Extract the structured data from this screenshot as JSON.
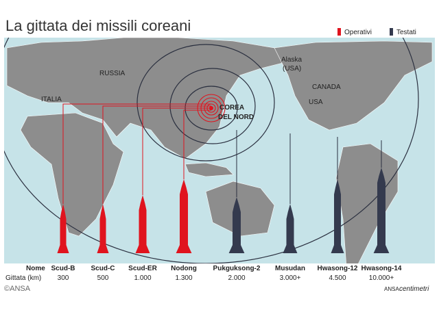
{
  "header": {
    "title": "La gittata dei missili coreani"
  },
  "legend": [
    {
      "label": "Operativi",
      "color": "#e0141e",
      "missiles": [
        {
          "name": "Scud-B",
          "range": "300"
        },
        {
          "name": "Scud-C",
          "range": "500"
        },
        {
          "name": "Scud-ER",
          "range": "1.000"
        },
        {
          "name": "Nodong",
          "range": "1.300"
        }
      ]
    },
    {
      "label": "Testati",
      "color": "#343a4e",
      "missiles": [
        {
          "name": "Pukguksong-2",
          "range": "2.000"
        },
        {
          "name": "Musudan",
          "range": "3.000+"
        },
        {
          "name": "Hwasong-12",
          "range": "4.500"
        },
        {
          "name": "Hwasong-14",
          "range": "10.000+"
        }
      ]
    }
  ],
  "map_labels": {
    "italia": "ITALIA",
    "russia": "RUSSIA",
    "alaska": [
      "Alaska",
      "(USA)"
    ],
    "canada": "CANADA",
    "usa": "USA",
    "korea": [
      "COREA",
      "DEL NORD"
    ]
  },
  "table": {
    "row_labels": [
      "Nome",
      "Gittata (km)"
    ]
  },
  "footer": {
    "source": "ANSA",
    "brand": "centimetri",
    "watermark": "©ANSA"
  }
}
